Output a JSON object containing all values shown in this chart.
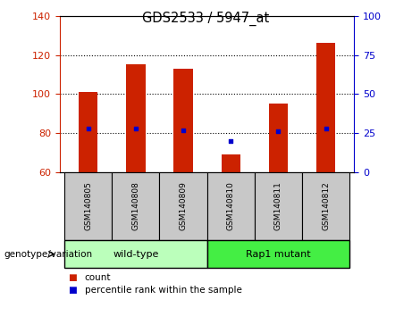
{
  "title": "GDS2533 / 5947_at",
  "categories": [
    "GSM140805",
    "GSM140808",
    "GSM140809",
    "GSM140810",
    "GSM140811",
    "GSM140812"
  ],
  "bar_values": [
    101,
    115,
    113,
    69,
    95,
    126
  ],
  "percentile_values": [
    28,
    28,
    27,
    20,
    26,
    28
  ],
  "bar_bottom": 60,
  "ylim_left": [
    60,
    140
  ],
  "ylim_right": [
    0,
    100
  ],
  "yticks_left": [
    60,
    80,
    100,
    120,
    140
  ],
  "yticks_right": [
    0,
    25,
    50,
    75,
    100
  ],
  "bar_color": "#cc2200",
  "dot_color": "#0000cc",
  "grid_color": "#000000",
  "groups": [
    {
      "label": "wild-type",
      "indices": [
        0,
        1,
        2
      ]
    },
    {
      "label": "Rap1 mutant",
      "indices": [
        3,
        4,
        5
      ]
    }
  ],
  "group_label": "genotype/variation",
  "legend_items": [
    {
      "label": "count",
      "color": "#cc2200"
    },
    {
      "label": "percentile rank within the sample",
      "color": "#0000cc"
    }
  ],
  "bar_width": 0.4,
  "left_tick_color": "#cc2200",
  "right_tick_color": "#0000cc",
  "background_plot": "#ffffff",
  "background_label": "#c8c8c8",
  "background_group_wt": "#bbffbb",
  "background_group_rap": "#44ee44"
}
